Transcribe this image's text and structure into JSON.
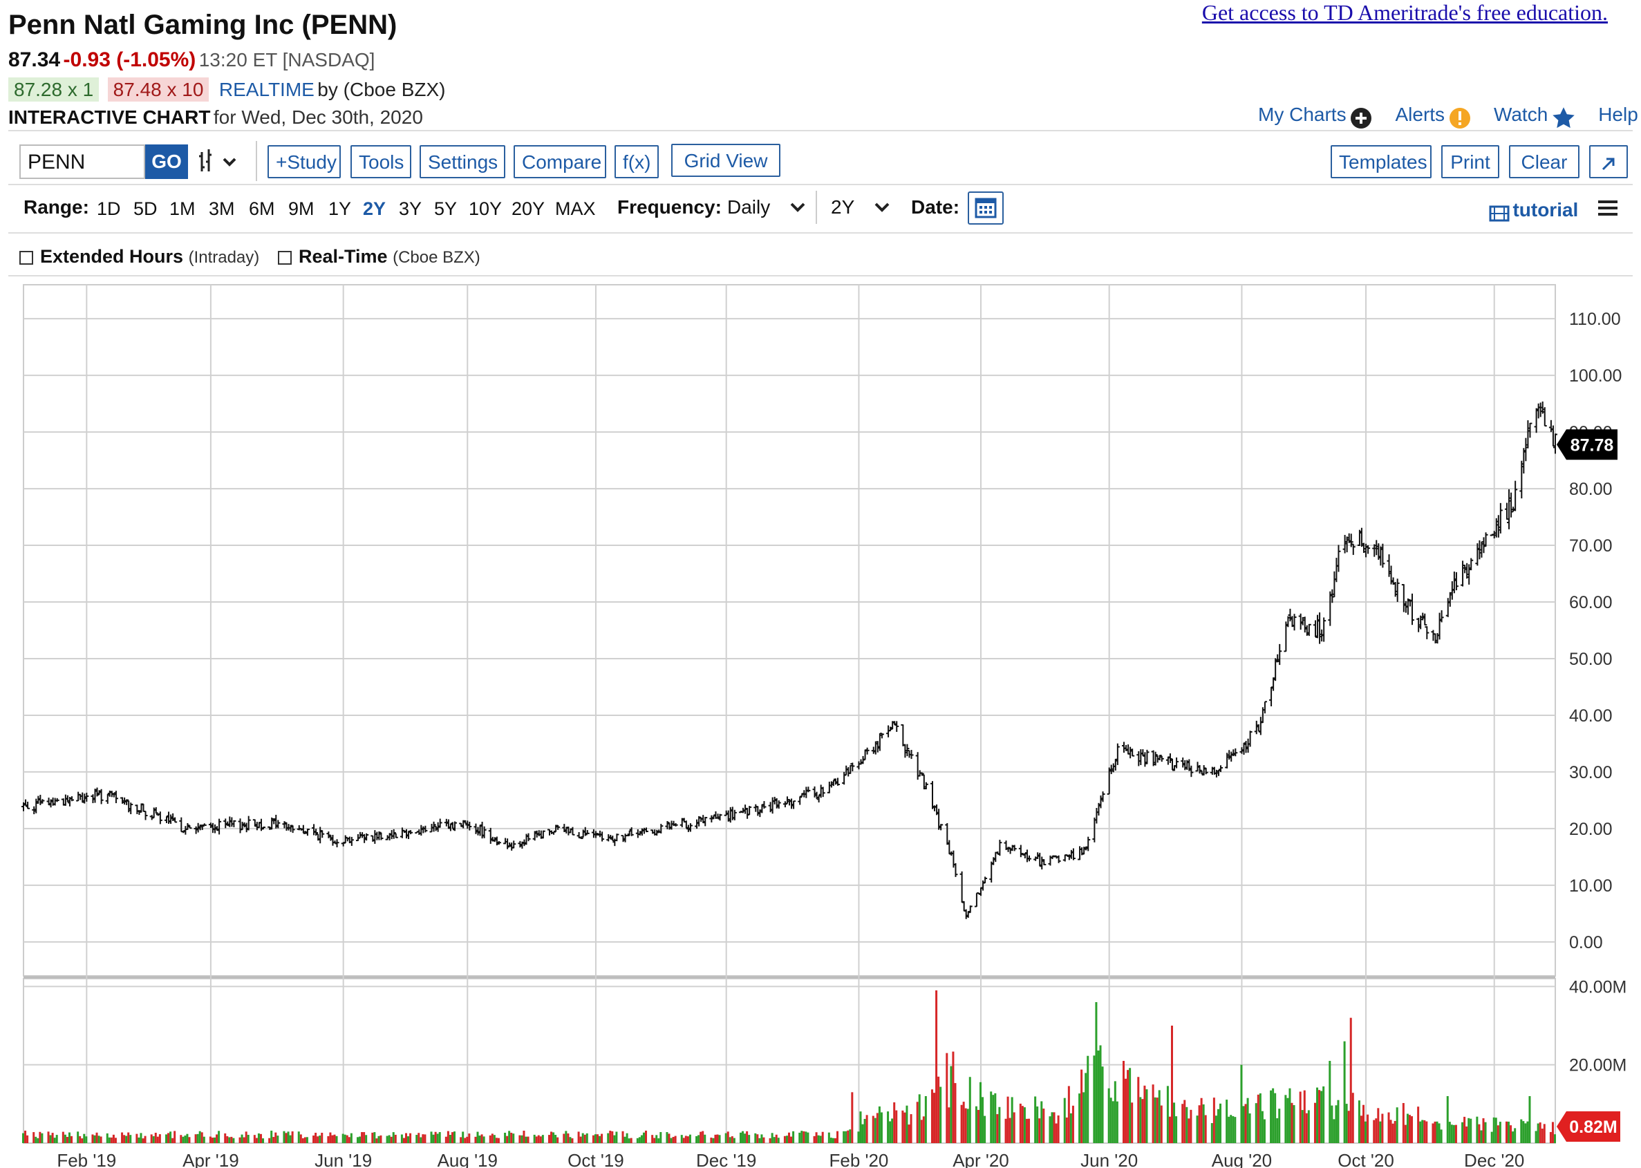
{
  "header": {
    "education_link": "Get access to TD Ameritrade's free education.",
    "title": "Penn Natl Gaming Inc (PENN)",
    "last_price": "87.34",
    "change": "-0.93 (-1.05%)",
    "time_exchange": "13:20 ET [NASDAQ]",
    "bid": "87.28 x 1",
    "ask": "87.48 x 10",
    "realtime_label": "REALTIME",
    "realtime_source": "by (Cboe BZX)",
    "interactive_chart": "INTERACTIVE CHART",
    "chart_date": "for Wed, Dec 30th, 2020"
  },
  "top_links": {
    "my_charts": "My Charts",
    "alerts": "Alerts",
    "watch": "Watch",
    "help": "Help"
  },
  "toolbar": {
    "symbol_value": "PENN",
    "go": "GO",
    "study": "+Study",
    "tools": "Tools",
    "settings": "Settings",
    "compare": "Compare",
    "fx": "f(x)",
    "grid_view": "Grid View",
    "templates": "Templates",
    "print": "Print",
    "clear": "Clear"
  },
  "range_bar": {
    "range_label": "Range:",
    "ranges": [
      "1D",
      "5D",
      "1M",
      "3M",
      "6M",
      "9M",
      "1Y",
      "2Y",
      "3Y",
      "5Y",
      "10Y",
      "20Y",
      "MAX"
    ],
    "active_range": "2Y",
    "frequency_label": "Frequency:",
    "frequency_value": "Daily",
    "period_value": "2Y",
    "date_label": "Date:",
    "tutorial": "tutorial"
  },
  "options": {
    "extended_hours": "Extended Hours",
    "extended_hours_note": "(Intraday)",
    "real_time": "Real-Time",
    "real_time_note": "(Cboe BZX)"
  },
  "colors": {
    "accent": "#1d5aa6",
    "down": "#c00000",
    "volume_up": "#2ca02c",
    "volume_down": "#d62728",
    "price_tag": "#000000",
    "volume_tag": "#e02020"
  },
  "chart_data": {
    "type": "bar",
    "title": "",
    "x_type": "date",
    "x_ticks": [
      "Feb '19",
      "Apr '19",
      "Jun '19",
      "Aug '19",
      "Oct '19",
      "Dec '19",
      "Feb '20",
      "Apr '20",
      "Jun '20",
      "Aug '20",
      "Oct '20",
      "Dec '20"
    ],
    "x_range": [
      "2019-01-02",
      "2020-12-30"
    ],
    "price": {
      "ylim": [
        -6,
        116
      ],
      "y_ticks": [
        "110.00",
        "100.00",
        "90.00",
        "80.00",
        "70.00",
        "60.00",
        "50.00",
        "40.00",
        "30.00",
        "20.00",
        "10.00",
        "0.00"
      ],
      "current_label": "87.78",
      "path_dates": [
        "2019-01-02",
        "2019-02-10",
        "2019-03-20",
        "2019-05-01",
        "2019-06-01",
        "2019-07-15",
        "2019-08-01",
        "2019-08-20",
        "2019-09-15",
        "2019-10-05",
        "2019-11-15",
        "2019-12-15",
        "2020-01-20",
        "2020-01-31",
        "2020-02-20",
        "2020-03-05",
        "2020-03-18",
        "2020-03-25",
        "2020-04-10",
        "2020-05-01",
        "2020-05-20",
        "2020-06-05",
        "2020-06-25",
        "2020-07-20",
        "2020-08-10",
        "2020-08-25",
        "2020-09-10",
        "2020-09-21",
        "2020-10-05",
        "2020-10-20",
        "2020-11-02",
        "2020-11-10",
        "2020-11-25",
        "2020-12-10",
        "2020-12-22",
        "2020-12-30"
      ],
      "path_closes": [
        24,
        26,
        20,
        21,
        18,
        20,
        21,
        17,
        20,
        18,
        21,
        23,
        27,
        31,
        38,
        28,
        15,
        4,
        17,
        14,
        16,
        34,
        32,
        30,
        37,
        56,
        55,
        72,
        70,
        60,
        53,
        62,
        70,
        78,
        96,
        88
      ]
    },
    "volume": {
      "ylim": [
        0,
        42
      ],
      "unit": "M",
      "y_ticks": [
        "40.00M",
        "20.00M"
      ],
      "current_label": "0.82M",
      "level_dates": [
        "2019-01-02",
        "2020-01-25",
        "2020-02-05",
        "2020-03-05",
        "2020-03-20",
        "2020-04-10",
        "2020-05-10",
        "2020-05-28",
        "2020-06-20",
        "2020-07-20",
        "2020-08-20",
        "2020-09-20",
        "2020-10-20",
        "2020-11-20",
        "2020-12-30"
      ],
      "levels": [
        2.2,
        2.2,
        6,
        9,
        18,
        9,
        9,
        20,
        11,
        8,
        10,
        10,
        7,
        5,
        4
      ],
      "spikes": [
        [
          "2020-01-31",
          13
        ],
        [
          "2020-03-11",
          39
        ],
        [
          "2020-03-16",
          23
        ],
        [
          "2020-05-26",
          36
        ],
        [
          "2020-06-08",
          21
        ],
        [
          "2020-07-01",
          30
        ],
        [
          "2020-08-03",
          20
        ],
        [
          "2020-09-14",
          21
        ],
        [
          "2020-09-21",
          26
        ],
        [
          "2020-09-24",
          32
        ],
        [
          "2020-11-09",
          12
        ],
        [
          "2020-12-18",
          12
        ]
      ]
    }
  }
}
